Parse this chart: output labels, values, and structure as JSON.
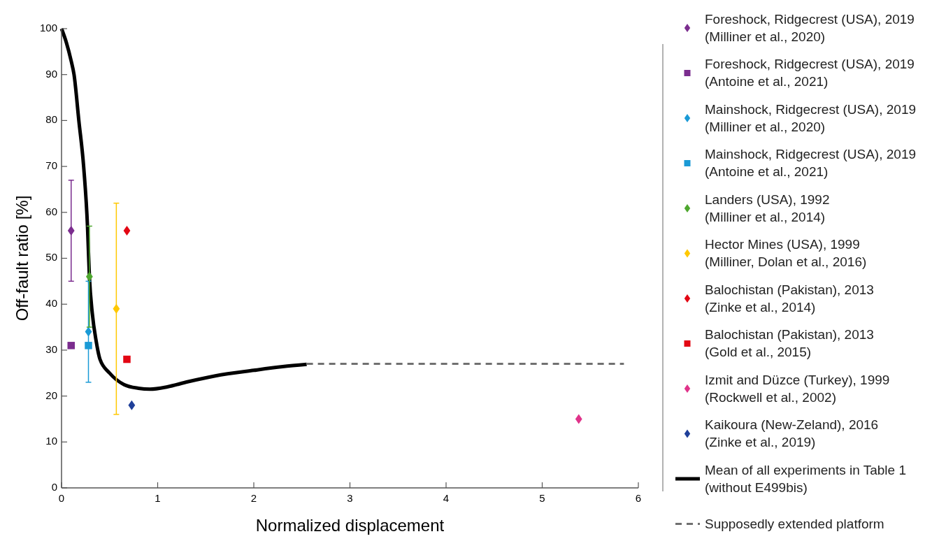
{
  "chart_data": {
    "type": "scatter",
    "xlabel": "Normalized displacement",
    "ylabel": "Off-fault ratio [%]",
    "xlim": [
      0,
      6
    ],
    "ylim": [
      0,
      100
    ],
    "xticks": [
      0,
      1,
      2,
      3,
      4,
      5,
      6
    ],
    "yticks": [
      0,
      10,
      20,
      30,
      40,
      50,
      60,
      70,
      80,
      90,
      100
    ],
    "grid": false,
    "legend": "right",
    "series": [
      {
        "name": "Foreshock, Ridgecrest (USA), 2019\n(Milliner et al., 2020)",
        "color": "#7b2d8e",
        "marker": "diamond",
        "x": [
          0.1
        ],
        "values": [
          56
        ],
        "errors": [
          [
            45,
            67
          ]
        ]
      },
      {
        "name": "Foreshock, Ridgecrest (USA), 2019\n(Antoine et al., 2021)",
        "color": "#7b2d8e",
        "marker": "square",
        "x": [
          0.1
        ],
        "values": [
          31
        ]
      },
      {
        "name": "Mainshock, Ridgecrest (USA), 2019\n(Milliner et al., 2020)",
        "color": "#1a9ad6",
        "marker": "diamond",
        "x": [
          0.28
        ],
        "values": [
          34
        ]
      },
      {
        "name": "Mainshock, Ridgecrest (USA), 2019\n(Antoine et al., 2021)",
        "color": "#1a9ad6",
        "marker": "square",
        "x": [
          0.28
        ],
        "values": [
          31
        ],
        "errors": [
          [
            23,
            45
          ]
        ]
      },
      {
        "name": "Landers (USA), 1992\n(Milliner et al., 2014)",
        "color": "#4ea72e",
        "marker": "diamond",
        "x": [
          0.29
        ],
        "values": [
          46
        ],
        "errors": [
          [
            35,
            57
          ]
        ]
      },
      {
        "name": "Hector Mines (USA), 1999\n(Milliner, Dolan et al., 2016)",
        "color": "#ffc800",
        "marker": "diamond",
        "x": [
          0.57
        ],
        "values": [
          39
        ],
        "errors": [
          [
            16,
            62
          ]
        ]
      },
      {
        "name": "Balochistan (Pakistan), 2013\n(Zinke et al., 2014)",
        "color": "#e30613",
        "marker": "diamond",
        "x": [
          0.68
        ],
        "values": [
          56
        ]
      },
      {
        "name": "Balochistan (Pakistan), 2013\n(Gold et al., 2015)",
        "color": "#e30613",
        "marker": "square",
        "x": [
          0.68
        ],
        "values": [
          28
        ]
      },
      {
        "name": "Izmit and Düzce (Turkey), 1999\n(Rockwell et al., 2002)",
        "color": "#e0338a",
        "marker": "diamond",
        "x": [
          5.38
        ],
        "values": [
          15
        ]
      },
      {
        "name": "Kaikoura (New-Zeland), 2016\n(Zinke et al., 2019)",
        "color": "#1f3f99",
        "marker": "diamond",
        "x": [
          0.73
        ],
        "values": [
          18
        ]
      },
      {
        "name": "Mean of all experiments in Table 1\n(without E499bis)",
        "type": "line",
        "color": "#000000",
        "line_style": "solid",
        "x": [
          0,
          0.05,
          0.1,
          0.13,
          0.18,
          0.23,
          0.27,
          0.29,
          0.32,
          0.36,
          0.4,
          0.5,
          0.65,
          0.8,
          0.92,
          1.1,
          1.31,
          1.6,
          2.0,
          2.3,
          2.55
        ],
        "values": [
          100,
          97,
          93,
          90,
          80,
          70,
          57,
          46,
          38,
          32,
          28,
          25,
          22.5,
          21.7,
          21.5,
          22,
          23.1,
          24.4,
          25.6,
          26.4,
          26.9
        ]
      },
      {
        "name": "Supposedly extended platform",
        "type": "line",
        "color": "#707070",
        "line_style": "dashed",
        "x": [
          2.55,
          5.85
        ],
        "values": [
          27,
          27
        ]
      }
    ]
  }
}
